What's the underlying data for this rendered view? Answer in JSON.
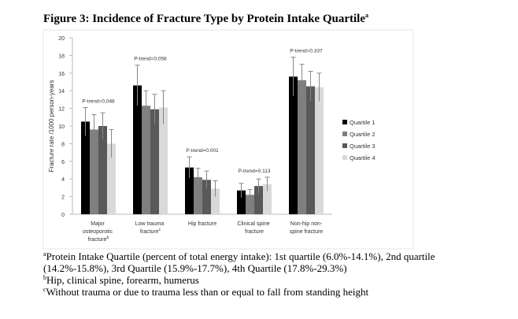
{
  "chart_data": {
    "type": "bar",
    "title": "Figure 3: Incidence of Fracture Type by Protein Intake Quartile",
    "title_superscript": "a",
    "y_label": "Fracture rate /1000 person-years",
    "categories": [
      "Major osteoporotic fracture",
      "Low trauma fracture",
      "Hip fracture",
      "Clinical spine fracture",
      "Non-hip non-spine fracture"
    ],
    "category_superscripts": [
      "b",
      "c",
      null,
      null,
      null
    ],
    "series": [
      {
        "name": "Quartile 1",
        "color": "#000000",
        "values": [
          10.5,
          14.6,
          5.3,
          2.7,
          15.6
        ],
        "errors": [
          1.6,
          2.3,
          1.2,
          0.8,
          2.2
        ]
      },
      {
        "name": "Quartile 2",
        "color": "#7f7f7f",
        "values": [
          9.6,
          12.3,
          4.2,
          2.2,
          15.2
        ],
        "errors": [
          1.7,
          1.7,
          1.0,
          0.6,
          1.8
        ]
      },
      {
        "name": "Quartile 3",
        "color": "#595959",
        "values": [
          10.0,
          11.9,
          3.9,
          3.2,
          14.5
        ],
        "errors": [
          1.5,
          1.7,
          1.0,
          0.8,
          1.7
        ]
      },
      {
        "name": "Quartile 4",
        "color": "#d9d9d9",
        "values": [
          8.0,
          12.1,
          2.9,
          3.4,
          14.4
        ],
        "errors": [
          1.6,
          1.9,
          0.9,
          0.8,
          1.6
        ]
      }
    ],
    "annotations": [
      "P-trend=0.048",
      "P-trend=0.058",
      "P-trend=0.001",
      "P-trend=0.113",
      "P-trend=0.337"
    ],
    "ylim": [
      0,
      20
    ],
    "yticks": [
      0,
      2,
      4,
      6,
      8,
      10,
      12,
      14,
      16,
      18,
      20
    ],
    "legend": "right"
  },
  "footnotes": [
    {
      "mark": "a",
      "text": "Protein Intake Quartile (percent of total energy intake): 1st quartile (6.0%-14.1%), 2nd quartile (14.2%-15.8%), 3rd Quartile (15.9%-17.7%), 4th Quartile (17.8%-29.3%)"
    },
    {
      "mark": "b",
      "text": "Hip, clinical spine, forearm, humerus"
    },
    {
      "mark": "c",
      "text": "Without trauma or due to trauma less than or equal to fall from standing height"
    }
  ]
}
